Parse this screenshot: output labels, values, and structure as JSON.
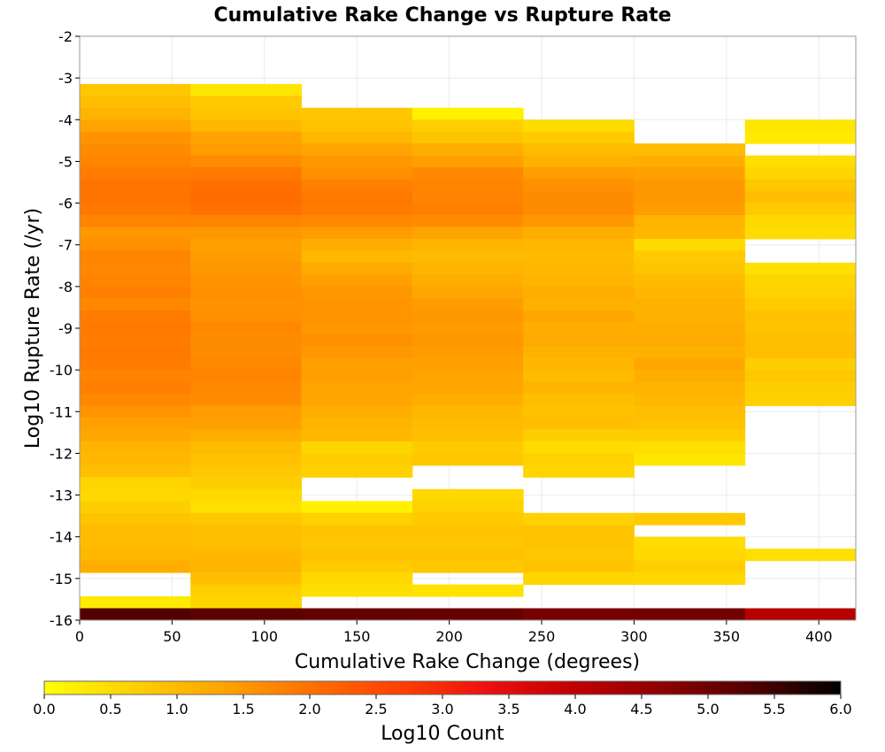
{
  "chart_data": {
    "type": "heatmap",
    "title": "Cumulative Rake Change vs Rupture Rate",
    "xlabel": "Cumulative Rake Change (degrees)",
    "ylabel": "Log10 Rupture Rate (/yr)",
    "xlim": [
      0,
      420
    ],
    "ylim": [
      -16,
      -2
    ],
    "x_ticks": [
      0,
      50,
      100,
      150,
      200,
      250,
      300,
      350,
      400
    ],
    "y_ticks": [
      -2,
      -3,
      -4,
      -5,
      -6,
      -7,
      -8,
      -9,
      -10,
      -11,
      -12,
      -13,
      -14,
      -15,
      -16
    ],
    "x_bin_edges": [
      0,
      60,
      120,
      180,
      240,
      300,
      360,
      420
    ],
    "y_bin_size": 0.2857,
    "grid": true,
    "colorbar": {
      "label": "Log10 Count",
      "min": 0.0,
      "max": 6.0,
      "ticks": [
        "0.0",
        "0.5",
        "1.0",
        "1.5",
        "2.0",
        "2.5",
        "3.0",
        "3.5",
        "4.0",
        "4.5",
        "5.0",
        "5.5",
        "6.0"
      ],
      "colors": [
        "#ffff00",
        "#ffd000",
        "#ffa500",
        "#ff7000",
        "#ff4000",
        "#ee1010",
        "#c00000",
        "#8c0000",
        "#500000",
        "#000000"
      ]
    },
    "columns": [
      {
        "x_bin": [
          0,
          60
        ],
        "cells": [
          [
            -3.286,
            0.8
          ],
          [
            -3.571,
            0.95
          ],
          [
            -3.857,
            1.1
          ],
          [
            -4.143,
            1.35
          ],
          [
            -4.429,
            1.55
          ],
          [
            -4.714,
            1.65
          ],
          [
            -5.0,
            1.75
          ],
          [
            -5.286,
            1.85
          ],
          [
            -5.571,
            1.95
          ],
          [
            -5.857,
            1.95
          ],
          [
            -6.143,
            1.9
          ],
          [
            -6.429,
            1.75
          ],
          [
            -6.714,
            1.5
          ],
          [
            -7.0,
            1.6
          ],
          [
            -7.286,
            1.75
          ],
          [
            -7.571,
            1.7
          ],
          [
            -7.857,
            1.75
          ],
          [
            -8.143,
            1.8
          ],
          [
            -8.429,
            1.7
          ],
          [
            -8.714,
            1.85
          ],
          [
            -9.0,
            1.9
          ],
          [
            -9.286,
            1.85
          ],
          [
            -9.571,
            1.9
          ],
          [
            -9.857,
            1.85
          ],
          [
            -10.143,
            1.75
          ],
          [
            -10.429,
            1.8
          ],
          [
            -10.714,
            1.7
          ],
          [
            -11.0,
            1.55
          ],
          [
            -11.286,
            1.4
          ],
          [
            -11.571,
            1.3
          ],
          [
            -11.857,
            1.1
          ],
          [
            -12.143,
            1.05
          ],
          [
            -12.429,
            0.95
          ],
          [
            -12.714,
            0.6
          ],
          [
            -13.0,
            0.55
          ],
          [
            -13.286,
            0.7
          ],
          [
            -13.571,
            0.85
          ],
          [
            -13.857,
            1.0
          ],
          [
            -14.143,
            1.0
          ],
          [
            -14.429,
            1.05
          ],
          [
            -14.714,
            1.2
          ],
          [
            -15.571,
            0.3
          ],
          [
            -15.857,
            5.3
          ]
        ]
      },
      {
        "x_bin": [
          60,
          120
        ],
        "cells": [
          [
            -3.286,
            0.35
          ],
          [
            -3.571,
            0.75
          ],
          [
            -3.857,
            0.85
          ],
          [
            -4.143,
            1.05
          ],
          [
            -4.429,
            1.35
          ],
          [
            -4.714,
            1.45
          ],
          [
            -5.0,
            1.65
          ],
          [
            -5.286,
            1.9
          ],
          [
            -5.571,
            2.0
          ],
          [
            -5.857,
            2.05
          ],
          [
            -6.143,
            2.0
          ],
          [
            -6.429,
            1.75
          ],
          [
            -6.714,
            1.5
          ],
          [
            -7.0,
            1.4
          ],
          [
            -7.286,
            1.45
          ],
          [
            -7.571,
            1.5
          ],
          [
            -7.857,
            1.55
          ],
          [
            -8.143,
            1.6
          ],
          [
            -8.429,
            1.55
          ],
          [
            -8.714,
            1.6
          ],
          [
            -9.0,
            1.7
          ],
          [
            -9.286,
            1.65
          ],
          [
            -9.571,
            1.65
          ],
          [
            -9.857,
            1.7
          ],
          [
            -10.143,
            1.75
          ],
          [
            -10.429,
            1.7
          ],
          [
            -10.714,
            1.65
          ],
          [
            -11.0,
            1.45
          ],
          [
            -11.286,
            1.4
          ],
          [
            -11.571,
            1.2
          ],
          [
            -11.857,
            1.0
          ],
          [
            -12.143,
            0.9
          ],
          [
            -12.429,
            0.8
          ],
          [
            -12.714,
            0.7
          ],
          [
            -13.0,
            0.55
          ],
          [
            -13.286,
            0.45
          ],
          [
            -13.571,
            0.8
          ],
          [
            -13.857,
            0.95
          ],
          [
            -14.143,
            0.95
          ],
          [
            -14.429,
            1.05
          ],
          [
            -14.714,
            1.1
          ],
          [
            -15.0,
            0.95
          ],
          [
            -15.286,
            0.7
          ],
          [
            -15.571,
            0.6
          ],
          [
            -15.857,
            5.2
          ]
        ]
      },
      {
        "x_bin": [
          120,
          180
        ],
        "cells": [
          [
            -3.857,
            0.8
          ],
          [
            -4.143,
            0.85
          ],
          [
            -4.429,
            1.05
          ],
          [
            -4.714,
            1.35
          ],
          [
            -5.0,
            1.5
          ],
          [
            -5.286,
            1.6
          ],
          [
            -5.571,
            1.8
          ],
          [
            -5.857,
            1.9
          ],
          [
            -6.143,
            1.85
          ],
          [
            -6.429,
            1.7
          ],
          [
            -6.714,
            1.45
          ],
          [
            -7.0,
            1.2
          ],
          [
            -7.286,
            1.05
          ],
          [
            -7.571,
            1.25
          ],
          [
            -7.857,
            1.4
          ],
          [
            -8.143,
            1.5
          ],
          [
            -8.429,
            1.55
          ],
          [
            -8.714,
            1.55
          ],
          [
            -9.0,
            1.5
          ],
          [
            -9.286,
            1.6
          ],
          [
            -9.571,
            1.5
          ],
          [
            -9.857,
            1.4
          ],
          [
            -10.143,
            1.4
          ],
          [
            -10.429,
            1.35
          ],
          [
            -10.714,
            1.3
          ],
          [
            -11.0,
            1.2
          ],
          [
            -11.286,
            1.1
          ],
          [
            -11.571,
            1.05
          ],
          [
            -11.857,
            0.6
          ],
          [
            -12.143,
            0.7
          ],
          [
            -12.429,
            0.65
          ],
          [
            -13.286,
            0.2
          ],
          [
            -13.571,
            0.65
          ],
          [
            -13.857,
            0.85
          ],
          [
            -14.143,
            0.8
          ],
          [
            -14.429,
            0.9
          ],
          [
            -14.714,
            0.75
          ],
          [
            -15.0,
            0.55
          ],
          [
            -15.286,
            0.45
          ],
          [
            -15.857,
            5.1
          ]
        ]
      },
      {
        "x_bin": [
          180,
          240
        ],
        "cells": [
          [
            -3.857,
            0.2
          ],
          [
            -4.143,
            0.7
          ],
          [
            -4.429,
            0.85
          ],
          [
            -4.714,
            1.2
          ],
          [
            -5.0,
            1.4
          ],
          [
            -5.286,
            1.7
          ],
          [
            -5.571,
            1.75
          ],
          [
            -5.857,
            1.75
          ],
          [
            -6.143,
            1.8
          ],
          [
            -6.429,
            1.65
          ],
          [
            -6.714,
            1.35
          ],
          [
            -7.0,
            1.1
          ],
          [
            -7.286,
            1.0
          ],
          [
            -7.571,
            1.1
          ],
          [
            -7.857,
            1.2
          ],
          [
            -8.143,
            1.3
          ],
          [
            -8.429,
            1.45
          ],
          [
            -8.714,
            1.5
          ],
          [
            -9.0,
            1.45
          ],
          [
            -9.286,
            1.5
          ],
          [
            -9.571,
            1.45
          ],
          [
            -9.857,
            1.4
          ],
          [
            -10.143,
            1.35
          ],
          [
            -10.429,
            1.3
          ],
          [
            -10.714,
            1.2
          ],
          [
            -11.0,
            1.05
          ],
          [
            -11.286,
            1.0
          ],
          [
            -11.571,
            0.95
          ],
          [
            -11.857,
            0.75
          ],
          [
            -12.143,
            0.8
          ],
          [
            -13.0,
            0.55
          ],
          [
            -13.286,
            0.65
          ],
          [
            -13.571,
            0.75
          ],
          [
            -13.857,
            0.85
          ],
          [
            -14.143,
            0.8
          ],
          [
            -14.429,
            0.9
          ],
          [
            -14.714,
            0.8
          ],
          [
            -15.286,
            0.4
          ],
          [
            -15.857,
            5.05
          ]
        ]
      },
      {
        "x_bin": [
          240,
          300
        ],
        "cells": [
          [
            -4.143,
            0.5
          ],
          [
            -4.429,
            0.75
          ],
          [
            -4.714,
            1.0
          ],
          [
            -5.0,
            1.15
          ],
          [
            -5.286,
            1.45
          ],
          [
            -5.571,
            1.6
          ],
          [
            -5.857,
            1.65
          ],
          [
            -6.143,
            1.65
          ],
          [
            -6.429,
            1.5
          ],
          [
            -6.714,
            1.2
          ],
          [
            -7.0,
            1.05
          ],
          [
            -7.286,
            1.0
          ],
          [
            -7.571,
            1.05
          ],
          [
            -7.857,
            1.1
          ],
          [
            -8.143,
            1.2
          ],
          [
            -8.429,
            1.15
          ],
          [
            -8.714,
            1.3
          ],
          [
            -9.0,
            1.2
          ],
          [
            -9.286,
            1.25
          ],
          [
            -9.571,
            1.15
          ],
          [
            -9.857,
            1.05
          ],
          [
            -10.143,
            1.0
          ],
          [
            -10.429,
            1.1
          ],
          [
            -10.714,
            0.95
          ],
          [
            -11.0,
            0.9
          ],
          [
            -11.286,
            0.95
          ],
          [
            -11.571,
            0.7
          ],
          [
            -11.857,
            0.5
          ],
          [
            -12.143,
            0.65
          ],
          [
            -12.429,
            0.6
          ],
          [
            -13.571,
            0.65
          ],
          [
            -13.857,
            0.85
          ],
          [
            -14.143,
            0.85
          ],
          [
            -14.429,
            0.8
          ],
          [
            -14.714,
            0.85
          ],
          [
            -15.0,
            0.6
          ],
          [
            -15.857,
            4.9
          ]
        ]
      },
      {
        "x_bin": [
          300,
          360
        ],
        "cells": [
          [
            -4.714,
            1.0
          ],
          [
            -5.0,
            1.2
          ],
          [
            -5.286,
            1.4
          ],
          [
            -5.571,
            1.5
          ],
          [
            -5.857,
            1.5
          ],
          [
            -6.143,
            1.45
          ],
          [
            -6.429,
            1.1
          ],
          [
            -6.714,
            1.05
          ],
          [
            -7.0,
            0.5
          ],
          [
            -7.286,
            0.75
          ],
          [
            -7.571,
            0.85
          ],
          [
            -7.857,
            1.0
          ],
          [
            -8.143,
            1.05
          ],
          [
            -8.429,
            1.15
          ],
          [
            -8.714,
            1.15
          ],
          [
            -9.0,
            1.2
          ],
          [
            -9.286,
            1.25
          ],
          [
            -9.571,
            1.15
          ],
          [
            -9.857,
            1.3
          ],
          [
            -10.143,
            1.2
          ],
          [
            -10.429,
            1.1
          ],
          [
            -10.714,
            1.05
          ],
          [
            -11.0,
            0.95
          ],
          [
            -11.286,
            0.9
          ],
          [
            -11.571,
            0.7
          ],
          [
            -11.857,
            0.45
          ],
          [
            -12.143,
            0.35
          ],
          [
            -13.571,
            0.75
          ],
          [
            -14.143,
            0.5
          ],
          [
            -14.429,
            0.55
          ],
          [
            -14.714,
            0.7
          ],
          [
            -15.0,
            0.55
          ],
          [
            -15.857,
            4.95
          ]
        ]
      },
      {
        "x_bin": [
          360,
          420
        ],
        "cells": [
          [
            -4.143,
            0.35
          ],
          [
            -4.429,
            0.3
          ],
          [
            -5.0,
            0.45
          ],
          [
            -5.286,
            0.6
          ],
          [
            -5.571,
            0.8
          ],
          [
            -5.857,
            0.95
          ],
          [
            -6.143,
            0.75
          ],
          [
            -6.429,
            0.55
          ],
          [
            -6.714,
            0.5
          ],
          [
            -7.571,
            0.45
          ],
          [
            -7.857,
            0.6
          ],
          [
            -8.143,
            0.65
          ],
          [
            -8.429,
            0.75
          ],
          [
            -8.714,
            0.9
          ],
          [
            -9.0,
            0.85
          ],
          [
            -9.286,
            0.95
          ],
          [
            -9.571,
            0.95
          ],
          [
            -9.857,
            0.7
          ],
          [
            -10.143,
            0.8
          ],
          [
            -10.429,
            0.7
          ],
          [
            -10.714,
            0.65
          ],
          [
            -14.429,
            0.45
          ],
          [
            -15.857,
            4.1
          ]
        ]
      }
    ]
  }
}
